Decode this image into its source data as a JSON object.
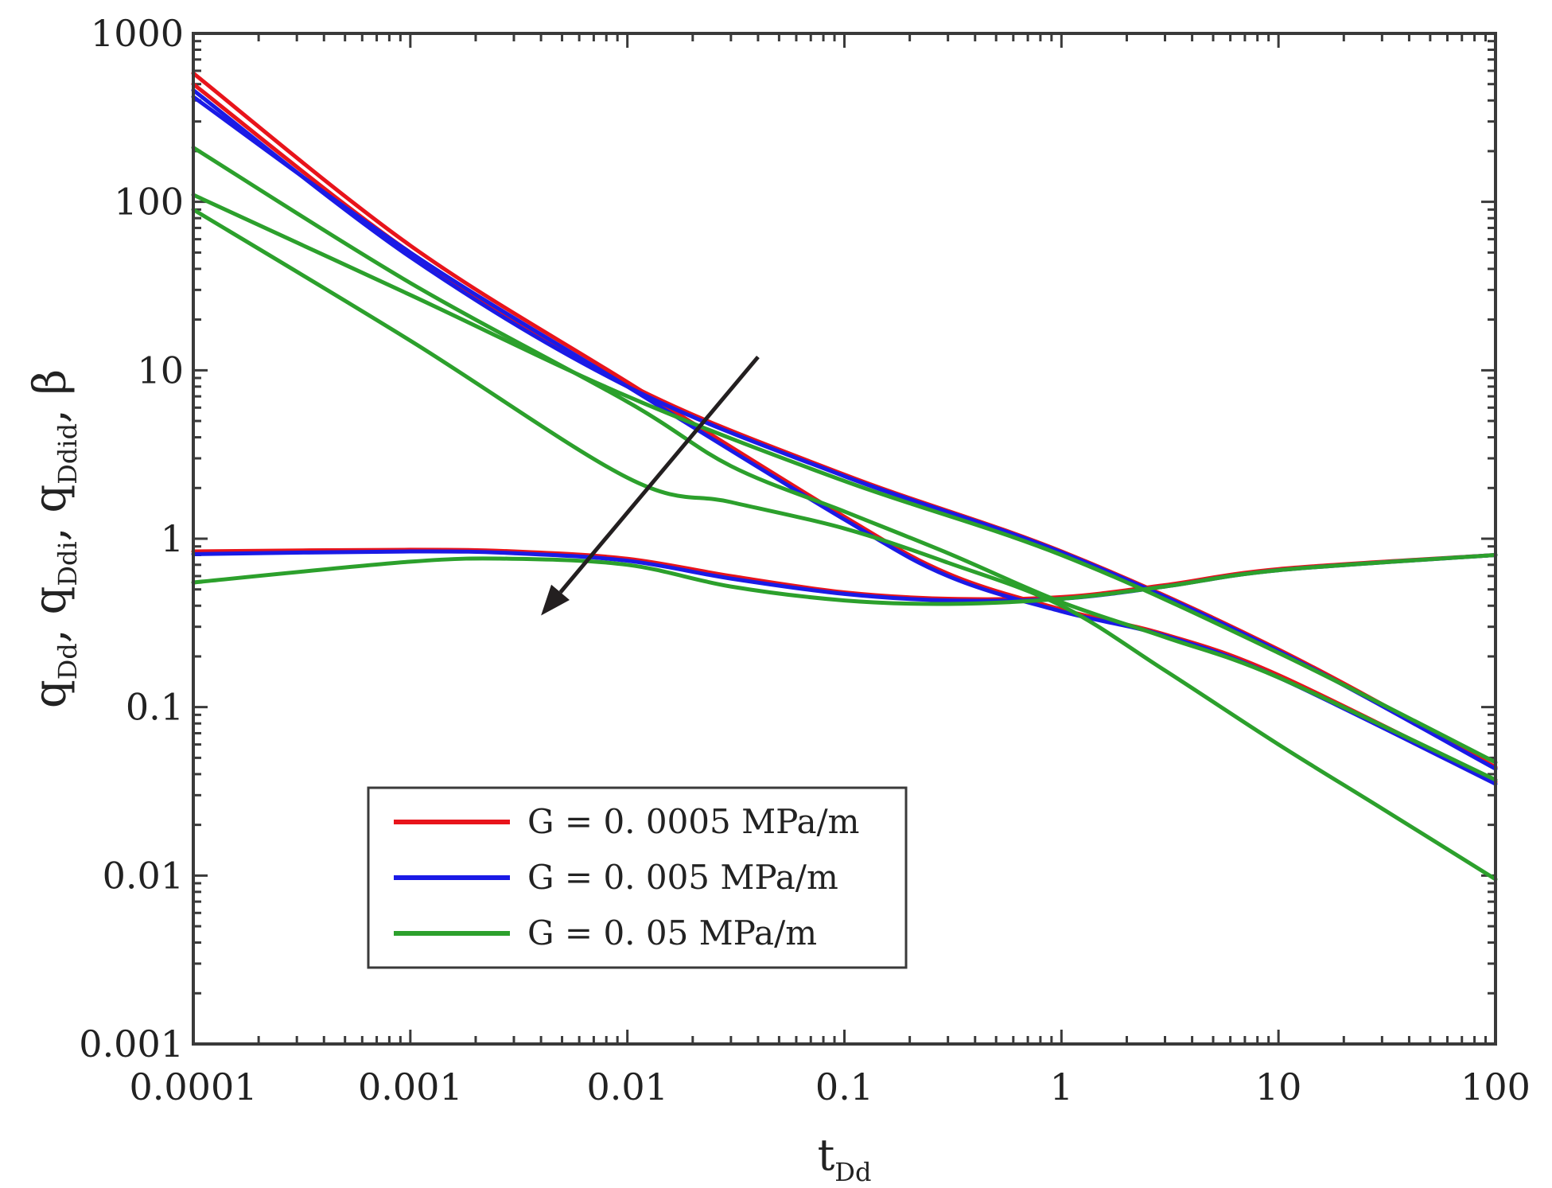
{
  "chart_data": {
    "type": "line",
    "scale": "log-log",
    "xlabel": "t",
    "xlabel_sub": "Dd",
    "ylabel_parts": [
      {
        "main": "q",
        "sub": "Dd"
      },
      {
        "main": "q",
        "sub": "Ddi"
      },
      {
        "main": "q",
        "sub": "Ddid"
      },
      {
        "main": "β",
        "sub": ""
      }
    ],
    "ylabel_sep": ", ",
    "xlim": [
      0.0001,
      100
    ],
    "ylim": [
      0.001,
      1000
    ],
    "x_ticks": [
      0.0001,
      0.001,
      0.01,
      0.1,
      1,
      10,
      100
    ],
    "x_tick_labels": [
      "0.0001",
      "0.001",
      "0.01",
      "0.1",
      "1",
      "10",
      "100"
    ],
    "y_ticks": [
      0.001,
      0.01,
      0.1,
      1,
      10,
      100,
      1000
    ],
    "y_tick_labels": [
      "0.001",
      "0.01",
      "0.1",
      "1",
      "10",
      "100",
      "1000"
    ],
    "grid": false,
    "legend_position": "bottom-left",
    "annotation": "arrow pointing toward increasing G (from upper right to lower left)",
    "series": [
      {
        "name": "G = 0. 0005 MPa/m",
        "color": "#e8141b",
        "curve": "qDd",
        "x": [
          0.0001,
          0.001,
          0.01,
          0.1,
          0.3,
          1,
          3,
          10,
          100
        ],
        "y": [
          580,
          55,
          8.5,
          1.35,
          0.62,
          0.38,
          0.27,
          0.155,
          0.036
        ]
      },
      {
        "name": "G = 0. 0005 MPa/m",
        "color": "#e8141b",
        "curve": "qDdi",
        "x": [
          0.0001,
          0.001,
          0.01,
          0.1,
          1,
          10,
          100
        ],
        "y": [
          500,
          50,
          8.3,
          2.4,
          0.84,
          0.22,
          0.044
        ]
      },
      {
        "name": "G = 0. 0005 MPa/m",
        "color": "#e8141b",
        "curve": "beta",
        "x": [
          0.0001,
          0.001,
          0.003,
          0.01,
          0.03,
          0.1,
          0.3,
          1,
          3,
          10,
          100
        ],
        "y": [
          0.84,
          0.86,
          0.84,
          0.76,
          0.6,
          0.48,
          0.44,
          0.45,
          0.53,
          0.66,
          0.8
        ]
      },
      {
        "name": "G = 0. 005 MPa/m",
        "color": "#1a1ae6",
        "curve": "qDd",
        "x": [
          0.0001,
          0.001,
          0.01,
          0.1,
          0.3,
          1,
          3,
          10,
          100
        ],
        "y": [
          420,
          50,
          8.0,
          1.3,
          0.6,
          0.37,
          0.265,
          0.15,
          0.035
        ]
      },
      {
        "name": "G = 0. 005 MPa/m",
        "color": "#1a1ae6",
        "curve": "qDdi",
        "x": [
          0.0001,
          0.001,
          0.01,
          0.1,
          1,
          10,
          100
        ],
        "y": [
          460,
          47,
          8.0,
          2.35,
          0.83,
          0.215,
          0.043
        ]
      },
      {
        "name": "G = 0. 005 MPa/m",
        "color": "#1a1ae6",
        "curve": "beta",
        "x": [
          0.0001,
          0.001,
          0.003,
          0.01,
          0.03,
          0.1,
          0.3,
          1,
          3,
          10,
          100
        ],
        "y": [
          0.81,
          0.84,
          0.82,
          0.74,
          0.58,
          0.47,
          0.43,
          0.44,
          0.52,
          0.65,
          0.8
        ]
      },
      {
        "name": "G = 0. 05 MPa/m",
        "color": "#2ca02c",
        "curve": "qDd",
        "x": [
          0.0001,
          0.001,
          0.01,
          0.03,
          0.1,
          0.3,
          1,
          3,
          10,
          30,
          100
        ],
        "y": [
          90,
          15,
          2.3,
          1.65,
          1.15,
          0.72,
          0.4,
          0.165,
          0.06,
          0.025,
          0.0095
        ]
      },
      {
        "name": "G = 0. 05 MPa/m",
        "color": "#2ca02c",
        "curve": "qDdi",
        "x": [
          0.0001,
          0.001,
          0.01,
          0.03,
          0.1,
          0.3,
          1,
          3,
          10,
          100
        ],
        "y": [
          210,
          33,
          6.5,
          2.7,
          1.45,
          0.82,
          0.42,
          0.26,
          0.15,
          0.037
        ]
      },
      {
        "name": "G = 0. 05 MPa/m",
        "color": "#2ca02c",
        "curve": "qDdid",
        "x": [
          0.0001,
          0.001,
          0.01,
          0.1,
          1,
          10,
          100
        ],
        "y": [
          110,
          28,
          7.0,
          2.2,
          0.8,
          0.21,
          0.047
        ]
      },
      {
        "name": "G = 0. 05 MPa/m",
        "color": "#2ca02c",
        "curve": "beta",
        "x": [
          0.0001,
          0.001,
          0.003,
          0.01,
          0.03,
          0.1,
          0.3,
          1,
          3,
          10,
          100
        ],
        "y": [
          0.55,
          0.73,
          0.76,
          0.7,
          0.52,
          0.43,
          0.41,
          0.44,
          0.52,
          0.65,
          0.8
        ]
      }
    ],
    "legend": [
      {
        "label": "G = 0. 0005 MPa/m",
        "color": "#e8141b"
      },
      {
        "label": "G = 0. 005 MPa/m",
        "color": "#1a1ae6"
      },
      {
        "label": "G = 0. 05 MPa/m",
        "color": "#2ca02c"
      }
    ],
    "arrow": {
      "from": [
        0.04,
        12
      ],
      "to": [
        0.004,
        0.35
      ],
      "color": "#231f20"
    }
  }
}
